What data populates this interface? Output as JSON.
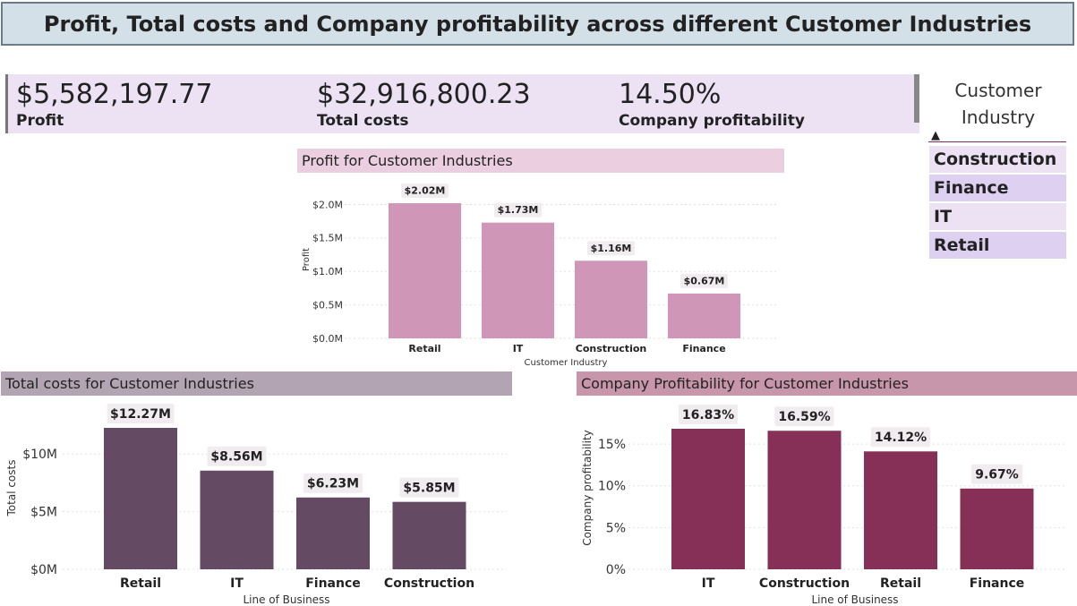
{
  "page_title": "Profit, Total costs and Company profitability across different Customer Industries",
  "kpis": [
    {
      "value": "$5,582,197.77",
      "label": "Profit"
    },
    {
      "value": "$32,916,800.23",
      "label": "Total costs"
    },
    {
      "value": "14.50%",
      "label": "Company profitability"
    }
  ],
  "slicer": {
    "title": "Customer Industry",
    "items": [
      "Construction",
      "Finance",
      "IT",
      "Retail"
    ]
  },
  "colors": {
    "title_bg": "#d4e0e8",
    "kpi_bg": "#ece2f4",
    "profit_bar": "#d096b8",
    "costs_bar": "#654a64",
    "profitability_bar": "#873057",
    "profit_header": "#ebcfe0",
    "costs_header": "#b3a4b3",
    "profitability_header": "#c896aa"
  },
  "chart_data": [
    {
      "type": "bar",
      "title": "Profit for Customer Industries",
      "xlabel": "Customer Industry",
      "ylabel": "Profit",
      "categories": [
        "Retail",
        "IT",
        "Construction",
        "Finance"
      ],
      "values": [
        2.02,
        1.73,
        1.16,
        0.67
      ],
      "data_labels": [
        "$2.02M",
        "$1.73M",
        "$1.16M",
        "$0.67M"
      ],
      "yticks": [
        "$0.0M",
        "$0.5M",
        "$1.0M",
        "$1.5M",
        "$2.0M"
      ],
      "ytick_values": [
        0,
        0.5,
        1.0,
        1.5,
        2.0
      ],
      "ylim": [
        0,
        2.02
      ],
      "grid": true
    },
    {
      "type": "bar",
      "title": "Total costs for Customer Industries",
      "xlabel": "Line of Business",
      "ylabel": "Total costs",
      "categories": [
        "Retail",
        "IT",
        "Finance",
        "Construction"
      ],
      "values": [
        12.27,
        8.56,
        6.23,
        5.85
      ],
      "data_labels": [
        "$12.27M",
        "$8.56M",
        "$6.23M",
        "$5.85M"
      ],
      "yticks": [
        "$0M",
        "$5M",
        "$10M"
      ],
      "ytick_values": [
        0,
        5,
        10
      ],
      "ylim": [
        0,
        12.27
      ],
      "grid": true
    },
    {
      "type": "bar",
      "title": "Company Profitability for Customer Industries",
      "xlabel": "Line of Business",
      "ylabel": "Company profitability",
      "categories": [
        "IT",
        "Construction",
        "Retail",
        "Finance"
      ],
      "values": [
        16.83,
        16.59,
        14.12,
        9.67
      ],
      "data_labels": [
        "16.83%",
        "16.59%",
        "14.12%",
        "9.67%"
      ],
      "yticks": [
        "0%",
        "5%",
        "10%",
        "15%"
      ],
      "ytick_values": [
        0,
        5,
        10,
        15
      ],
      "ylim": [
        0,
        16.83
      ],
      "grid": true
    }
  ]
}
